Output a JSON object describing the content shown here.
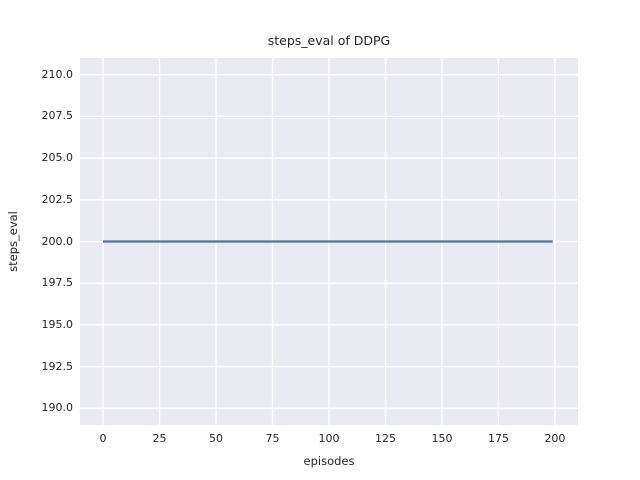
{
  "chart_data": {
    "type": "line",
    "title": "steps_eval of DDPG",
    "xlabel": "episodes",
    "ylabel": "steps_eval",
    "xlim": [
      -10.2,
      210.2
    ],
    "ylim": [
      189,
      211
    ],
    "xticks": [
      0,
      25,
      50,
      75,
      100,
      125,
      150,
      175,
      200
    ],
    "xtick_labels": [
      "0",
      "25",
      "50",
      "75",
      "100",
      "125",
      "150",
      "175",
      "200"
    ],
    "yticks": [
      190.0,
      192.5,
      195.0,
      197.5,
      200.0,
      202.5,
      205.0,
      207.5,
      210.0
    ],
    "ytick_labels": [
      "190.0",
      "192.5",
      "195.0",
      "197.5",
      "200.0",
      "202.5",
      "205.0",
      "207.5",
      "210.0"
    ],
    "grid": true,
    "legend_position": "none",
    "series": [
      {
        "name": "steps_eval",
        "color": "#4C72B0",
        "x": [
          0,
          199
        ],
        "y": [
          200,
          200
        ],
        "note": "constant value 200 for all episodes 0-199"
      }
    ],
    "colors": {
      "plot_background": "#EAEAF2",
      "grid_line": "#FFFFFF",
      "text": "#262626",
      "figure_background": "#FFFFFF"
    }
  }
}
